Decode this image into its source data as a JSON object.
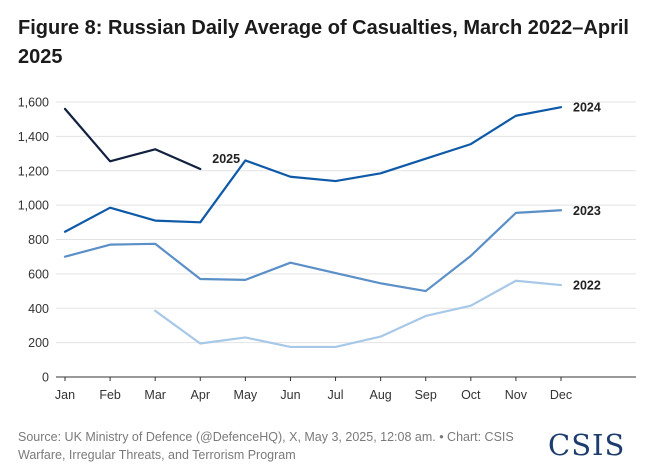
{
  "title": "Figure 8: Russian Daily Average of Casualties, March 2022–April 2025",
  "source": "Source: UK Ministry of Defence (@DefenceHQ), X, May 3, 2025, 12:08 am. • Chart: CSIS Warfare, Irregular Threats, and Terrorism Program",
  "logo_text": "CSIS",
  "chart_data": {
    "type": "line",
    "categories": [
      "Jan",
      "Feb",
      "Mar",
      "Apr",
      "May",
      "Jun",
      "Jul",
      "Aug",
      "Sep",
      "Oct",
      "Nov",
      "Dec"
    ],
    "ylim": [
      0,
      1600
    ],
    "yticks": [
      0,
      200,
      400,
      600,
      800,
      1000,
      1200,
      1400,
      1600
    ],
    "ytick_labels": [
      "0",
      "200",
      "400",
      "600",
      "800",
      "1,000",
      "1,200",
      "1,400",
      "1,600"
    ],
    "grid": true,
    "series": [
      {
        "name": "2022",
        "label": "2022",
        "color": "#a8c8e8",
        "values": [
          null,
          null,
          385,
          195,
          230,
          175,
          175,
          235,
          355,
          415,
          560,
          535
        ]
      },
      {
        "name": "2023",
        "label": "2023",
        "color": "#5b8fc7",
        "values": [
          700,
          770,
          775,
          570,
          565,
          665,
          605,
          545,
          500,
          705,
          955,
          970
        ]
      },
      {
        "name": "2024",
        "label": "2024",
        "color": "#0f5aa8",
        "values": [
          845,
          985,
          910,
          900,
          1260,
          1165,
          1140,
          1185,
          1270,
          1355,
          1520,
          1570
        ]
      },
      {
        "name": "2025",
        "label": "2025",
        "color": "#12213f",
        "values": [
          1560,
          1255,
          1325,
          1210,
          null,
          null,
          null,
          null,
          null,
          null,
          null,
          null
        ]
      }
    ]
  }
}
